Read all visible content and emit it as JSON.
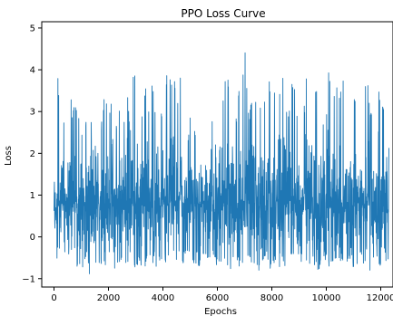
{
  "chart_data": {
    "type": "line",
    "title": "PPO Loss Curve",
    "xlabel": "Epochs",
    "ylabel": "Loss",
    "xlim": [
      -450,
      12450
    ],
    "ylim": [
      -1.2,
      5.15
    ],
    "xticks": [
      0,
      2000,
      4000,
      6000,
      8000,
      10000,
      12000
    ],
    "yticks": [
      -1,
      0,
      1,
      2,
      3,
      4,
      5
    ],
    "x_range": [
      0,
      12300
    ],
    "y_range": [
      -1.0,
      4.8
    ],
    "grid": false,
    "legend": "none",
    "color": "#1f77b4",
    "series": [
      {
        "x": [
          0,
          100,
          200,
          300,
          400,
          500,
          600,
          700,
          800,
          900,
          1000,
          1100,
          1200,
          1300,
          1400,
          1500,
          1600,
          1700,
          1800,
          1900,
          2000,
          2100,
          2200,
          2300,
          2400,
          2500,
          2600,
          2700,
          2800,
          2900,
          3000,
          3100,
          3200,
          3300,
          3400,
          3500,
          3600,
          3700,
          3800,
          3900,
          4000,
          4100,
          4200,
          4300,
          4400,
          4500,
          4600,
          4700,
          4800,
          4900,
          5000,
          5100,
          5200,
          5300,
          5400,
          5500,
          5600,
          5700,
          5800,
          5900,
          6000,
          6100,
          6200,
          6300,
          6400,
          6500,
          6600,
          6700,
          6800,
          6900,
          7000,
          7100,
          7200,
          7300,
          7400,
          7500,
          7600,
          7700,
          7800,
          7900,
          8000,
          8100,
          8200,
          8300,
          8400,
          8500,
          8600,
          8700,
          8800,
          8900,
          9000,
          9100,
          9200,
          9300,
          9400,
          9500,
          9600,
          9700,
          9800,
          9900,
          10000,
          10100,
          10200,
          10300,
          10400,
          10500,
          10600,
          10700,
          10800,
          10900,
          11000,
          11100,
          11200,
          11300,
          11400,
          11500,
          11600,
          11700,
          11800,
          11900,
          12000,
          12100,
          12200,
          12300
        ],
        "y_high": [
          1.2,
          4.4,
          3.2,
          2.6,
          3.1,
          2.4,
          3.5,
          3.0,
          3.4,
          2.8,
          4.1,
          2.7,
          2.9,
          3.5,
          2.5,
          4.0,
          3.3,
          2.6,
          3.1,
          3.6,
          2.8,
          3.2,
          3.9,
          2.7,
          3.3,
          3.0,
          2.9,
          3.4,
          2.6,
          3.8,
          4.1,
          3.3,
          2.9,
          3.5,
          3.7,
          2.8,
          3.9,
          3.0,
          4.1,
          3.2,
          2.9,
          3.8,
          4.3,
          3.5,
          4.4,
          2.9,
          4.0,
          3.6,
          3.3,
          2.2,
          3.0,
          3.4,
          4.4,
          3.1,
          2.8,
          3.5,
          4.0,
          3.3,
          2.9,
          4.3,
          3.7,
          3.2,
          3.4,
          4.0,
          3.8,
          3.1,
          3.4,
          2.9,
          3.7,
          3.3,
          4.8,
          3.4,
          3.0,
          3.8,
          3.3,
          2.9,
          3.4,
          3.6,
          3.1,
          3.9,
          3.2,
          3.5,
          3.0,
          3.7,
          4.0,
          3.2,
          2.9,
          3.6,
          3.8,
          3.1,
          3.4,
          3.0,
          3.2,
          4.1,
          3.5,
          3.0,
          3.7,
          3.3,
          4.4,
          3.6,
          3.1,
          4.2,
          3.0,
          3.4,
          3.8,
          3.3,
          4.2,
          3.1,
          3.6,
          3.9,
          3.2,
          3.5,
          3.0,
          3.4,
          3.3,
          4.1,
          3.2,
          3.0,
          3.6,
          3.8,
          3.4,
          3.2,
          3.4,
          2.4
        ],
        "y_low": [
          -0.4,
          -0.9,
          -0.6,
          -0.7,
          -0.5,
          -0.8,
          -0.6,
          -0.7,
          -0.9,
          -0.6,
          -0.8,
          -0.7,
          -0.5,
          -0.9,
          -1.0,
          -0.7,
          -0.6,
          -0.8,
          -0.5,
          -0.7,
          -0.6,
          -0.8,
          -0.7,
          -0.9,
          -0.6,
          -0.5,
          -0.8,
          -0.6,
          -0.7,
          -0.5,
          -0.8,
          -0.6,
          -0.7,
          -0.9,
          -0.6,
          -0.5,
          -0.7,
          -0.6,
          -0.8,
          -0.5,
          -0.7,
          -0.6,
          -0.5,
          -0.7,
          -0.8,
          -0.6,
          -0.5,
          -0.7,
          -0.6,
          -0.4,
          -0.5,
          -0.7,
          -0.6,
          -0.8,
          -0.5,
          -0.6,
          -0.7,
          -0.5,
          -0.8,
          -0.6,
          -0.7,
          -0.5,
          -0.8,
          -0.6,
          -0.7,
          -0.9,
          -0.6,
          -0.5,
          -0.7,
          -0.6,
          -0.8,
          -0.6,
          -0.5,
          -0.7,
          -0.6,
          -0.9,
          -0.7,
          -0.5,
          -0.6,
          -0.8,
          -0.7,
          -0.6,
          -0.5,
          -0.8,
          -0.6,
          -0.9,
          -0.7,
          -0.5,
          -0.6,
          -0.8,
          -0.9,
          -0.6,
          -0.7,
          -0.5,
          -0.8,
          -0.6,
          -0.7,
          -0.9,
          -0.6,
          -0.8,
          -0.5,
          -0.7,
          -0.6,
          -0.8,
          -0.5,
          -0.7,
          -0.6,
          -0.9,
          -0.5,
          -0.6,
          -0.8,
          -0.7,
          -0.6,
          -0.5,
          -0.7,
          -0.6,
          -0.8,
          -0.7,
          -0.5,
          -0.6,
          -0.7,
          -0.5,
          -0.6,
          -0.5
        ]
      }
    ]
  }
}
